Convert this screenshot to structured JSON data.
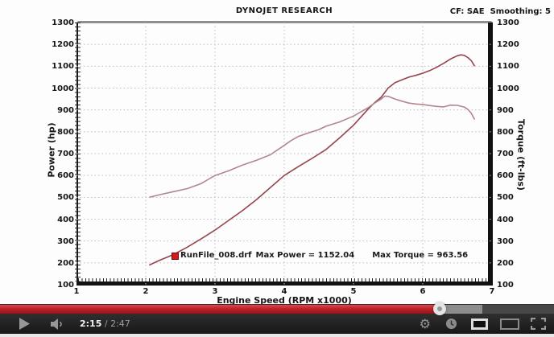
{
  "chart": {
    "title": "DYNOJET RESEARCH",
    "header_right": "CF: SAE  Smoothing: 5",
    "x_axis": {
      "label": "Engine Speed (RPM x1000)",
      "ticks": [
        "1",
        "2",
        "3",
        "4",
        "5",
        "6",
        "7"
      ]
    },
    "y_left": {
      "label": "Power (hp)",
      "ticks": [
        "1300",
        "1200",
        "1100",
        "1000",
        "900",
        "800",
        "700",
        "600",
        "500",
        "400",
        "300",
        "200",
        "100"
      ]
    },
    "y_right": {
      "label": "Torque (ft-lbs)",
      "ticks": [
        "1300",
        "1200",
        "1100",
        "1000",
        "900",
        "800",
        "700",
        "600",
        "500",
        "400",
        "300",
        "200",
        "100"
      ]
    },
    "annotation": {
      "file": "RunFile_008.drf",
      "max_power": "Max Power = 1152.04",
      "max_torque": "Max Torque = 963.56"
    }
  },
  "chart_data": {
    "type": "line",
    "title": "DYNOJET RESEARCH",
    "xlabel": "Engine Speed (RPM x1000)",
    "ylabel_left": "Power (hp)",
    "ylabel_right": "Torque (ft-lbs)",
    "xlim": [
      1,
      7
    ],
    "ylim": [
      100,
      1300
    ],
    "x_grid": [
      2,
      3,
      4,
      5,
      6
    ],
    "y_grid": [
      200,
      300,
      400,
      500,
      600,
      700,
      800,
      900,
      1000,
      1100,
      1200
    ],
    "grid_color": "#bdbdbd",
    "correction_factor": "SAE",
    "smoothing": 5,
    "max_power": 1152.04,
    "max_torque": 963.56,
    "marker": {
      "x": 2.42,
      "y": 232,
      "color": "#d41a1a"
    },
    "series": [
      {
        "name": "Power (hp)",
        "axis": "left",
        "color": "#96444d",
        "x": [
          2.05,
          2.2,
          2.4,
          2.6,
          2.8,
          3.0,
          3.2,
          3.4,
          3.6,
          3.8,
          4.0,
          4.2,
          4.4,
          4.6,
          4.8,
          5.0,
          5.1,
          5.2,
          5.3,
          5.4,
          5.5,
          5.6,
          5.7,
          5.8,
          5.9,
          6.0,
          6.1,
          6.2,
          6.3,
          6.4,
          6.5,
          6.55,
          6.6,
          6.65,
          6.7,
          6.75
        ],
        "values": [
          190,
          212,
          238,
          272,
          310,
          350,
          395,
          440,
          490,
          545,
          600,
          640,
          678,
          718,
          772,
          830,
          865,
          900,
          932,
          958,
          1000,
          1025,
          1038,
          1050,
          1058,
          1068,
          1080,
          1095,
          1113,
          1133,
          1148,
          1152,
          1150,
          1140,
          1126,
          1100
        ]
      },
      {
        "name": "Torque (ft-lbs)",
        "axis": "right",
        "color": "#b2878d",
        "x": [
          2.05,
          2.2,
          2.4,
          2.6,
          2.8,
          3.0,
          3.2,
          3.4,
          3.6,
          3.8,
          4.0,
          4.1,
          4.2,
          4.35,
          4.5,
          4.6,
          4.8,
          5.0,
          5.1,
          5.2,
          5.3,
          5.4,
          5.45,
          5.5,
          5.6,
          5.7,
          5.8,
          5.9,
          6.0,
          6.1,
          6.2,
          6.3,
          6.4,
          6.5,
          6.6,
          6.65,
          6.7,
          6.75
        ],
        "values": [
          500,
          512,
          526,
          540,
          563,
          600,
          622,
          648,
          670,
          695,
          738,
          760,
          778,
          795,
          810,
          825,
          845,
          872,
          890,
          908,
          930,
          950,
          963,
          962,
          950,
          940,
          931,
          927,
          925,
          920,
          916,
          914,
          922,
          921,
          913,
          903,
          885,
          856
        ]
      }
    ]
  },
  "player": {
    "time": {
      "current": "2:15",
      "separator": " / ",
      "duration": "2:47"
    },
    "progress": {
      "played_percent": 79.3,
      "buffered_percent": 87.0,
      "played_color": "#bf2129",
      "buffered_color": "#8d8d8d",
      "rail_color": "#474747"
    }
  }
}
